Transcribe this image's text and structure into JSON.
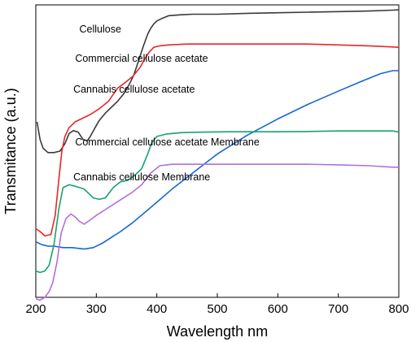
{
  "chart_data": {
    "type": "line",
    "xlabel": "Wavelength nm",
    "ylabel": "Transmitance (a.u.)",
    "xlim": [
      200,
      800
    ],
    "ylim": [
      0,
      100
    ],
    "y_ticks_labeled": false,
    "x_ticks": [
      200,
      300,
      400,
      500,
      600,
      700,
      800
    ],
    "legend": "inline labels next to curves",
    "grid": false,
    "series": [
      {
        "name": "Cellulose",
        "color": "#3a3a3a",
        "x": [
          202,
          207,
          212,
          220,
          230,
          240,
          248,
          255,
          262,
          270,
          278,
          285,
          290,
          298,
          305,
          315,
          325,
          335,
          345,
          355,
          362,
          370,
          378,
          385,
          390,
          395,
          400,
          410,
          420,
          440,
          460,
          500,
          550,
          600,
          650,
          700,
          750,
          790,
          800
        ],
        "y": [
          60,
          54,
          51,
          49.5,
          49.5,
          50,
          52.5,
          56,
          57,
          56.5,
          54,
          53.5,
          55,
          58,
          60.5,
          63,
          65,
          67,
          69.5,
          73,
          76,
          81,
          86,
          90,
          92,
          93.5,
          94.5,
          95.5,
          96.3,
          96.6,
          96.8,
          96.8,
          97.1,
          97.3,
          97.5,
          97.7,
          97.9,
          98.2,
          98.3
        ]
      },
      {
        "name": "Commercial cellulose acetate",
        "color": "#e8262a",
        "x": [
          200,
          207,
          215,
          225,
          232,
          238,
          243,
          248,
          255,
          265,
          275,
          290,
          305,
          320,
          335,
          345,
          360,
          372,
          380,
          388,
          395,
          405,
          420,
          450,
          500,
          550,
          600,
          650,
          700,
          750,
          790,
          800
        ],
        "y": [
          23.5,
          22.5,
          21,
          21.5,
          28,
          40,
          50,
          55,
          58,
          60,
          61,
          62.5,
          64.5,
          67,
          71.5,
          73,
          75.5,
          78.5,
          81.5,
          84,
          85.5,
          86,
          86.3,
          86.6,
          86.6,
          86.6,
          86.6,
          86.6,
          86.3,
          86,
          85.6,
          85.5
        ]
      },
      {
        "name": "Cannabis cellulose acetate",
        "color": "#1567d3",
        "x": [
          200,
          210,
          220,
          230,
          245,
          260,
          280,
          295,
          310,
          325,
          340,
          360,
          380,
          400,
          425,
          450,
          500,
          550,
          600,
          650,
          700,
          740,
          770,
          790,
          800
        ],
        "y": [
          19,
          18,
          17.5,
          17.5,
          17,
          17,
          16.5,
          17,
          18.5,
          20.5,
          22.5,
          25.5,
          29,
          32.5,
          37,
          41,
          49,
          55.5,
          61,
          66,
          70.5,
          74,
          76.5,
          77.5,
          77.5
        ]
      },
      {
        "name": "Commercial cellulose acetate Membrane",
        "color": "#16a36a",
        "x": [
          200,
          207,
          215,
          222,
          230,
          238,
          245,
          255,
          265,
          280,
          295,
          305,
          315,
          328,
          340,
          352,
          365,
          375,
          385,
          392,
          400,
          415,
          440,
          480,
          520,
          560,
          600,
          650,
          700,
          750,
          790,
          800
        ],
        "y": [
          9,
          8.5,
          9,
          11,
          18,
          30,
          37.5,
          38.5,
          38,
          37,
          34,
          33.5,
          34,
          37.5,
          39.5,
          40,
          42,
          44,
          49,
          53,
          55,
          55.8,
          56.3,
          56.5,
          56.6,
          56.6,
          56.6,
          56.7,
          56.9,
          56.9,
          56.9,
          56.5
        ]
      },
      {
        "name": "Cannabis cellulose Membrane",
        "color": "#b26ee0",
        "x": [
          200,
          207,
          215,
          222,
          228,
          235,
          242,
          250,
          258,
          265,
          272,
          280,
          290,
          300,
          315,
          330,
          345,
          360,
          375,
          390,
          405,
          425,
          460,
          500,
          550,
          600,
          650,
          700,
          750,
          790,
          800
        ],
        "y": [
          -0.5,
          -1,
          0,
          2,
          5,
          12,
          22,
          27,
          28.5,
          27.5,
          26,
          25,
          26.5,
          28,
          30,
          32,
          34,
          36,
          38.5,
          42.5,
          45,
          45.5,
          45.5,
          45.5,
          45.5,
          45.5,
          45.5,
          45.3,
          45,
          44.5,
          44.5
        ]
      }
    ],
    "annotations": [
      {
        "text": "Cellulose",
        "x": 272,
        "y": 90.5
      },
      {
        "text": "Commercial cellulose acetate",
        "x": 265,
        "y": 80.5
      },
      {
        "text": "Cannabis cellulose acetate",
        "x": 262,
        "y": 70
      },
      {
        "text": "Commercial cellulose acetate Membrane",
        "x": 265,
        "y": 52
      },
      {
        "text": "Cannabis cellulose Membrane",
        "x": 262,
        "y": 40
      }
    ]
  }
}
